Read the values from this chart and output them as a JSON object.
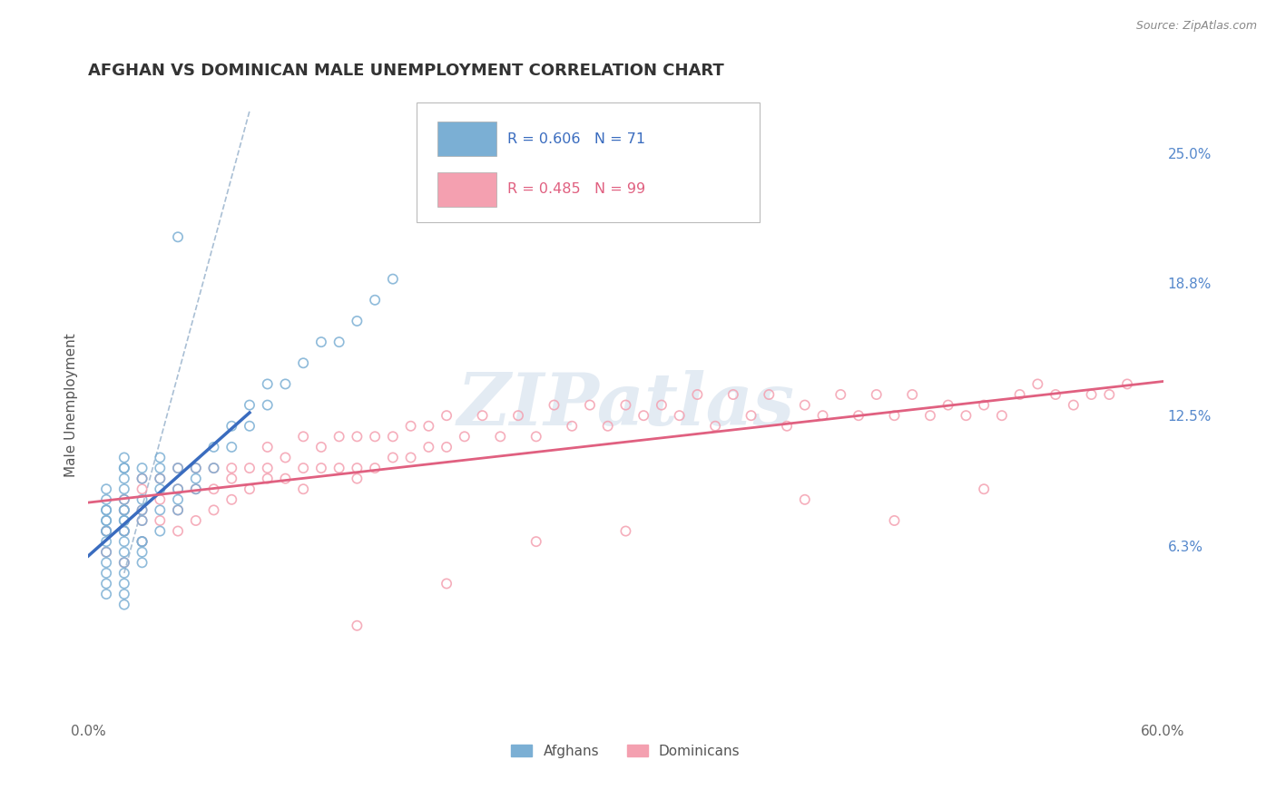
{
  "title": "AFGHAN VS DOMINICAN MALE UNEMPLOYMENT CORRELATION CHART",
  "source": "Source: ZipAtlas.com",
  "ylabel": "Male Unemployment",
  "xlim": [
    0.0,
    0.6
  ],
  "ylim": [
    -0.02,
    0.28
  ],
  "plot_ylim": [
    -0.02,
    0.28
  ],
  "xtick_labels": [
    "0.0%",
    "60.0%"
  ],
  "xtick_positions": [
    0.0,
    0.6
  ],
  "ytick_right_labels": [
    "6.3%",
    "12.5%",
    "18.8%",
    "25.0%"
  ],
  "ytick_right_positions": [
    0.063,
    0.125,
    0.188,
    0.25
  ],
  "legend_r1": "R = 0.606",
  "legend_n1": "N = 71",
  "legend_r2": "R = 0.485",
  "legend_n2": "N = 99",
  "afghan_color": "#7bafd4",
  "dominican_color": "#f4a0b0",
  "afghan_trend_color": "#3a6cbf",
  "dominican_trend_color": "#e06080",
  "ref_line_color": "#a0b8d0",
  "background_color": "#ffffff",
  "grid_color": "#cccccc",
  "watermark_color": "#c8d8e8",
  "title_color": "#333333",
  "source_color": "#888888",
  "right_tick_color": "#5588cc"
}
